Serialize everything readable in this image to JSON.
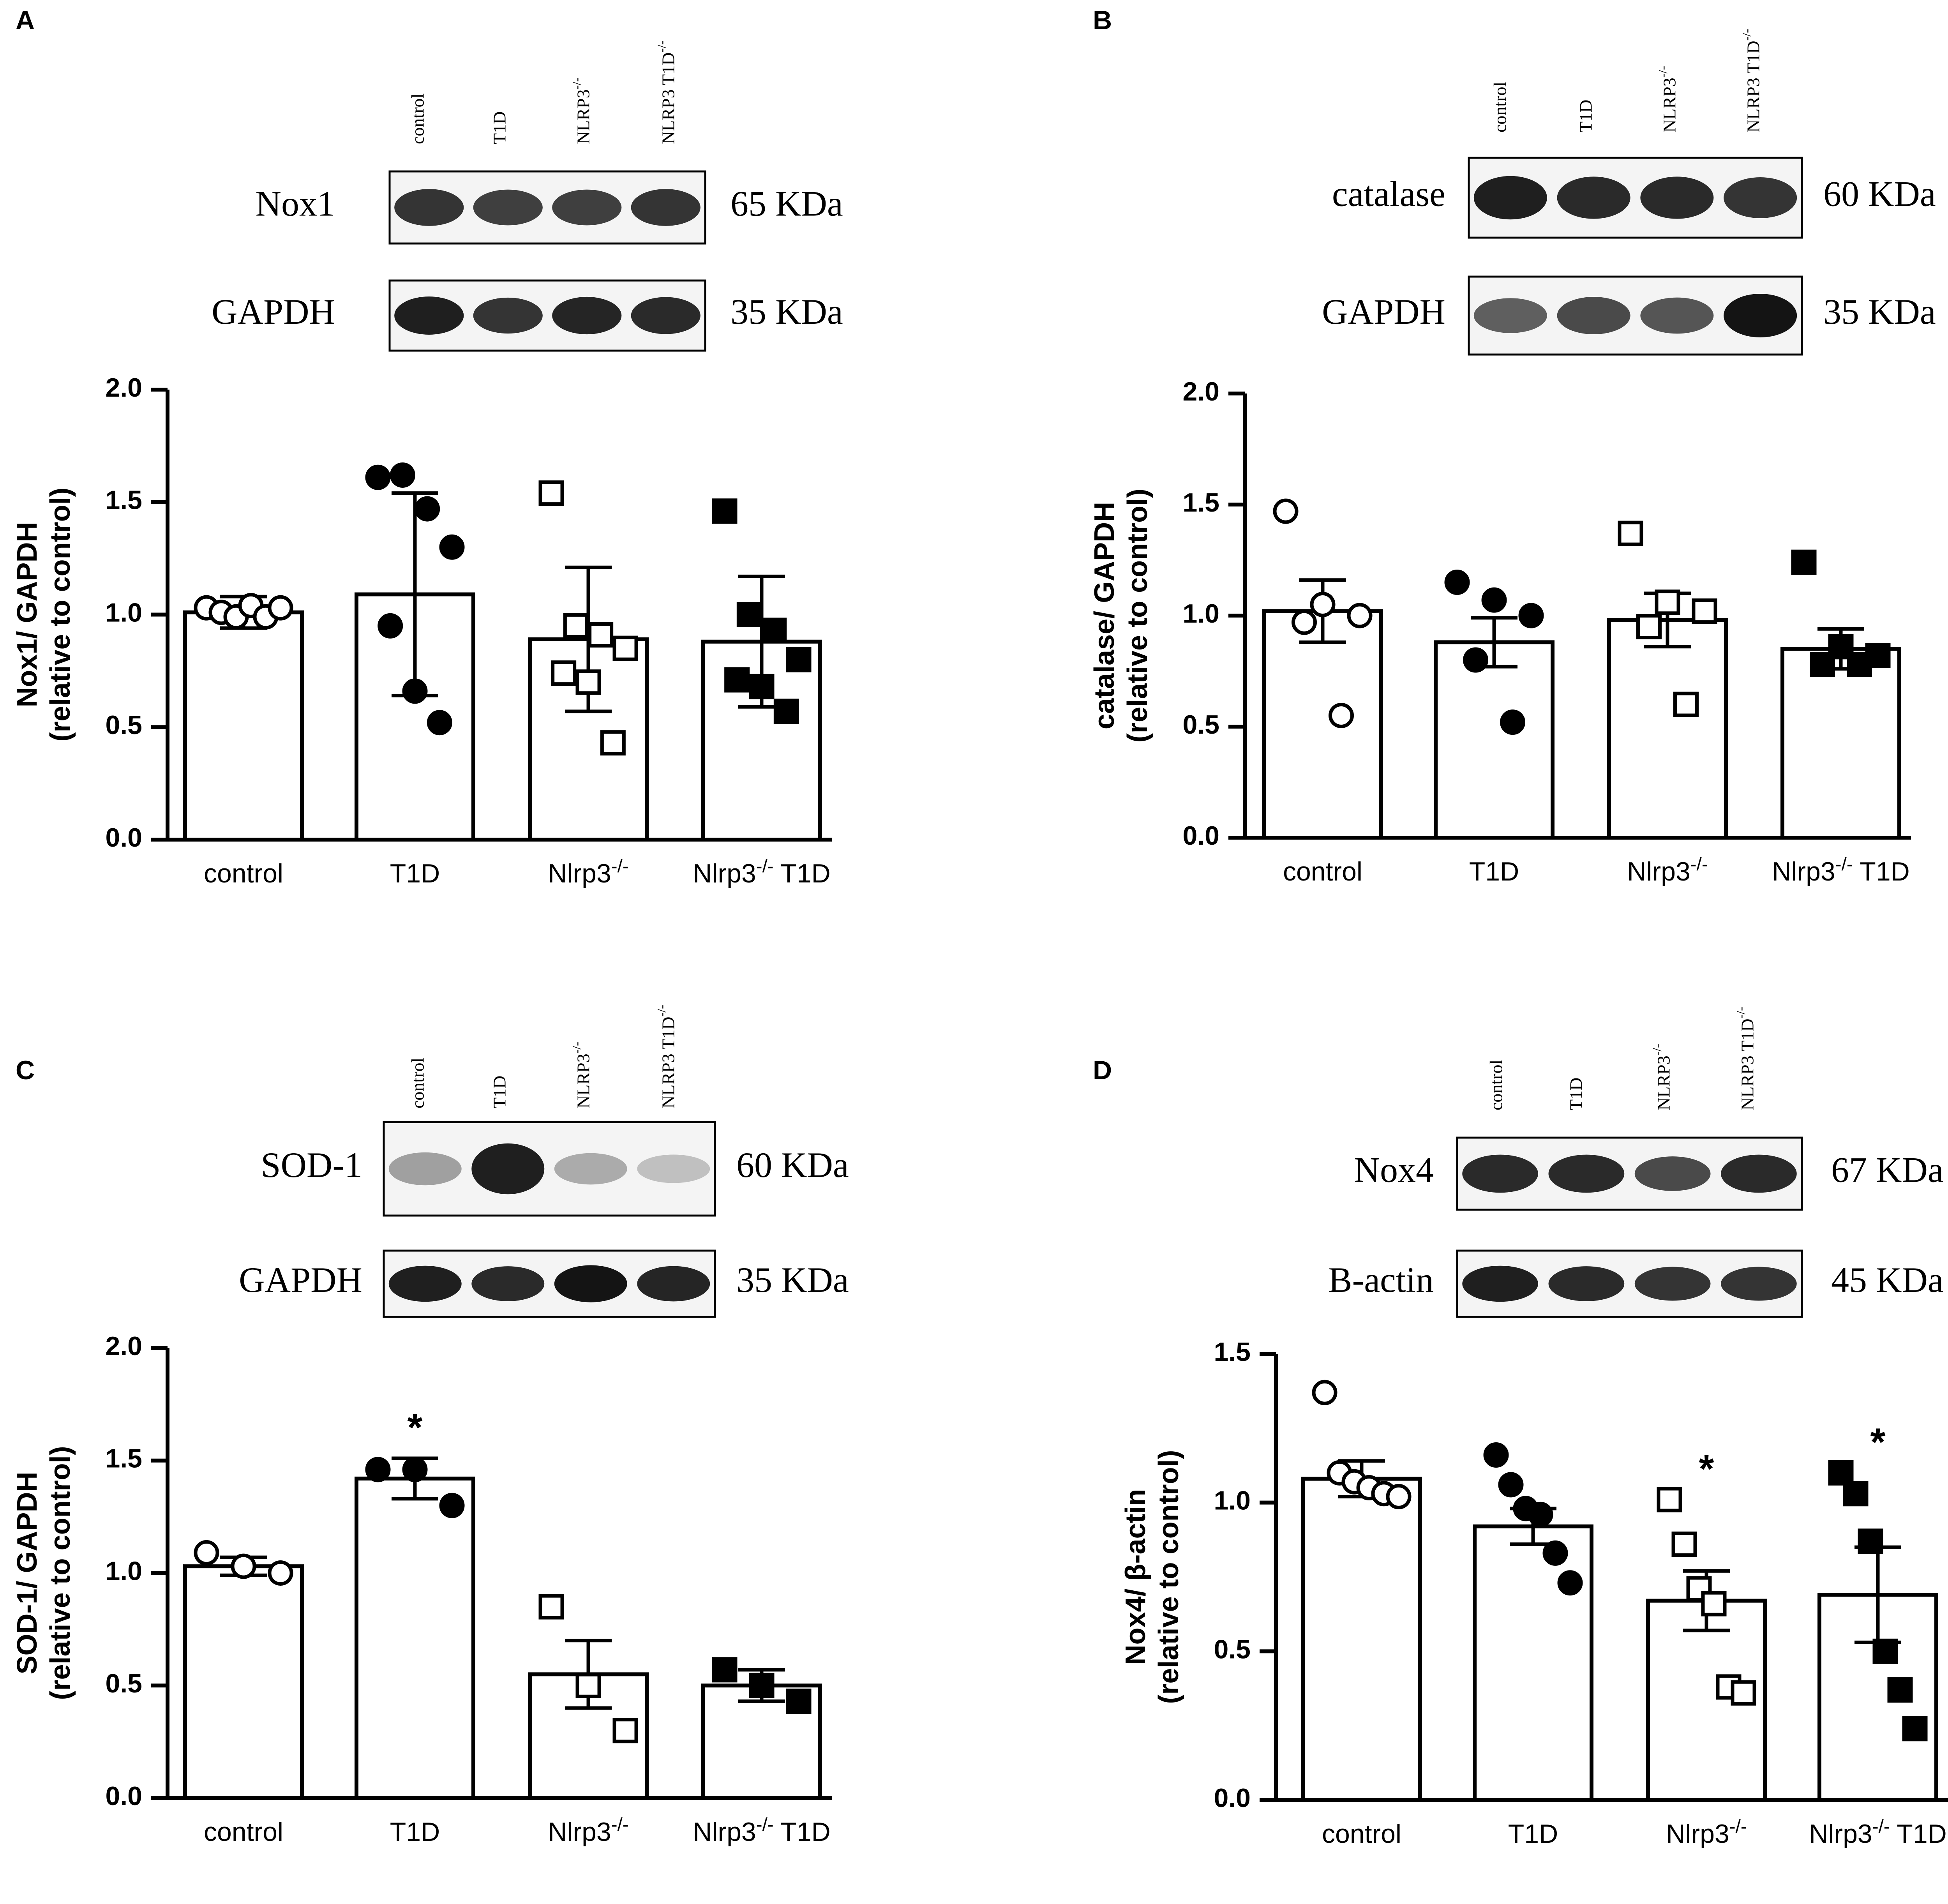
{
  "chart_data": [
    {
      "type": "bar",
      "panel_label": "A",
      "categories": [
        "control",
        "T1D",
        "Nlrp3",
        "Nlrp3 T1D"
      ],
      "category_sups": [
        "",
        "",
        "-/-",
        "-/-"
      ],
      "ylabel_line1": "Nox1/ GAPDH",
      "ylabel_line2": "(relative to control)",
      "ylim": [
        0,
        2.0
      ],
      "yticks": [
        0.0,
        0.5,
        1.0,
        1.5,
        2.0
      ],
      "ytick_labels": [
        "0.0",
        "0.5",
        "1.0",
        "1.5",
        "2.0"
      ],
      "grid": false,
      "values": [
        1.01,
        1.09,
        0.89,
        0.88
      ],
      "errors": [
        0.07,
        0.45,
        0.32,
        0.29
      ],
      "points": [
        [
          1.03,
          1.01,
          0.99,
          1.04,
          0.99,
          1.03
        ],
        [
          1.61,
          1.62,
          1.47,
          1.3,
          0.95,
          0.66,
          0.52
        ],
        [
          1.54,
          0.95,
          0.91,
          0.85,
          0.74,
          0.7,
          0.43
        ],
        [
          1.46,
          1.0,
          0.93,
          0.8,
          0.71,
          0.68,
          0.57
        ]
      ],
      "marker_styles": [
        "open-circle",
        "filled-circle",
        "open-square",
        "filled-square"
      ],
      "significance": [
        "",
        "",
        "",
        ""
      ],
      "blot": {
        "lanes": [
          "control",
          "T1D",
          "NLRP3",
          "NLRP3 T1D"
        ],
        "lane_sups": [
          "",
          "",
          "-/-",
          "-/-"
        ],
        "rows": [
          {
            "protein": "Nox1",
            "size": "65 KDa",
            "lane_intensity": [
              0.85,
              0.8,
              0.8,
              0.85
            ]
          },
          {
            "protein": "GAPDH",
            "size": "35 KDa",
            "lane_intensity": [
              0.95,
              0.85,
              0.92,
              0.9
            ]
          }
        ]
      }
    },
    {
      "type": "bar",
      "panel_label": "B",
      "categories": [
        "control",
        "T1D",
        "Nlrp3",
        "Nlrp3 T1D"
      ],
      "category_sups": [
        "",
        "",
        "-/-",
        "-/-"
      ],
      "ylabel_line1": "catalase/ GAPDH",
      "ylabel_line2": "(relative to control)",
      "ylim": [
        0,
        2.0
      ],
      "yticks": [
        0.0,
        0.5,
        1.0,
        1.5,
        2.0
      ],
      "ytick_labels": [
        "0.0",
        "0.5",
        "1.0",
        "1.5",
        "2.0"
      ],
      "grid": false,
      "values": [
        1.02,
        0.88,
        0.98,
        0.85
      ],
      "errors": [
        0.14,
        0.11,
        0.12,
        0.09
      ],
      "points": [
        [
          1.47,
          1.05,
          1.0,
          0.97,
          0.55
        ],
        [
          1.15,
          1.07,
          1.0,
          0.8,
          0.52
        ],
        [
          1.37,
          1.06,
          1.02,
          0.95,
          0.6
        ],
        [
          1.24,
          0.86,
          0.82,
          0.78,
          0.78
        ]
      ],
      "marker_styles": [
        "open-circle",
        "filled-circle",
        "open-square",
        "filled-square"
      ],
      "significance": [
        "",
        "",
        "",
        ""
      ],
      "blot": {
        "lanes": [
          "control",
          "T1D",
          "NLRP3",
          "NLRP3 T1D"
        ],
        "lane_sups": [
          "",
          "",
          "-/-",
          "-/-"
        ],
        "rows": [
          {
            "protein": "catalase",
            "size": "60 KDa",
            "lane_intensity": [
              0.95,
              0.9,
              0.9,
              0.85
            ]
          },
          {
            "protein": "GAPDH",
            "size": "35 KDa",
            "lane_intensity": [
              0.65,
              0.75,
              0.7,
              1.0
            ]
          }
        ]
      }
    },
    {
      "type": "bar",
      "panel_label": "C",
      "categories": [
        "control",
        "T1D",
        "Nlrp3",
        "Nlrp3 T1D"
      ],
      "category_sups": [
        "",
        "",
        "-/-",
        "-/-"
      ],
      "ylabel_line1": "SOD-1/ GAPDH",
      "ylabel_line2": "(relative to control)",
      "ylim": [
        0,
        2.0
      ],
      "yticks": [
        0.0,
        0.5,
        1.0,
        1.5,
        2.0
      ],
      "ytick_labels": [
        "0.0",
        "0.5",
        "1.0",
        "1.5",
        "2.0"
      ],
      "grid": false,
      "values": [
        1.03,
        1.42,
        0.55,
        0.5
      ],
      "errors": [
        0.04,
        0.09,
        0.15,
        0.07
      ],
      "points": [
        [
          1.09,
          1.03,
          1.0
        ],
        [
          1.46,
          1.46,
          1.3
        ],
        [
          0.85,
          0.5,
          0.3
        ],
        [
          0.57,
          0.5,
          0.43
        ]
      ],
      "marker_styles": [
        "open-circle",
        "filled-circle",
        "open-square",
        "filled-square"
      ],
      "significance": [
        "",
        "*",
        "",
        ""
      ],
      "blot": {
        "lanes": [
          "control",
          "T1D",
          "NLRP3",
          "NLRP3 T1D"
        ],
        "lane_sups": [
          "",
          "",
          "-/-",
          "-/-"
        ],
        "rows": [
          {
            "protein": "SOD-1",
            "size": "60 KDa",
            "lane_intensity": [
              0.35,
              0.95,
              0.3,
              0.2
            ]
          },
          {
            "protein": "GAPDH",
            "size": "35 KDa",
            "lane_intensity": [
              0.95,
              0.9,
              1.0,
              0.92
            ]
          }
        ]
      }
    },
    {
      "type": "bar",
      "panel_label": "D",
      "categories": [
        "control",
        "T1D",
        "Nlrp3",
        "Nlrp3 T1D"
      ],
      "category_sups": [
        "",
        "",
        "-/-",
        "-/-"
      ],
      "ylabel_line1": "Nox4/ β-actin",
      "ylabel_line2": "(relative to control)",
      "ylim": [
        0,
        1.5
      ],
      "yticks": [
        0.0,
        0.5,
        1.0,
        1.5
      ],
      "ytick_labels": [
        "0.0",
        "0.5",
        "1.0",
        "1.5"
      ],
      "grid": false,
      "values": [
        1.08,
        0.92,
        0.67,
        0.69
      ],
      "errors": [
        0.06,
        0.06,
        0.1,
        0.16
      ],
      "points": [
        [
          1.37,
          1.1,
          1.07,
          1.05,
          1.03,
          1.02
        ],
        [
          1.16,
          1.06,
          0.98,
          0.96,
          0.83,
          0.73
        ],
        [
          1.01,
          0.86,
          0.71,
          0.66,
          0.38,
          0.36
        ],
        [
          1.1,
          1.03,
          0.87,
          0.5,
          0.37,
          0.24
        ]
      ],
      "marker_styles": [
        "open-circle",
        "filled-circle",
        "open-square",
        "filled-square"
      ],
      "significance": [
        "",
        "",
        "*",
        "*"
      ],
      "blot": {
        "lanes": [
          "control",
          "T1D",
          "NLRP3",
          "NLRP3 T1D"
        ],
        "lane_sups": [
          "",
          "",
          "-/-",
          "-/-"
        ],
        "rows": [
          {
            "protein": "Nox4",
            "size": "67 KDa",
            "lane_intensity": [
              0.9,
              0.9,
              0.75,
              0.9
            ]
          },
          {
            "protein": "B-actin",
            "size": "45 KDa",
            "lane_intensity": [
              0.95,
              0.9,
              0.85,
              0.85
            ]
          }
        ]
      }
    }
  ]
}
